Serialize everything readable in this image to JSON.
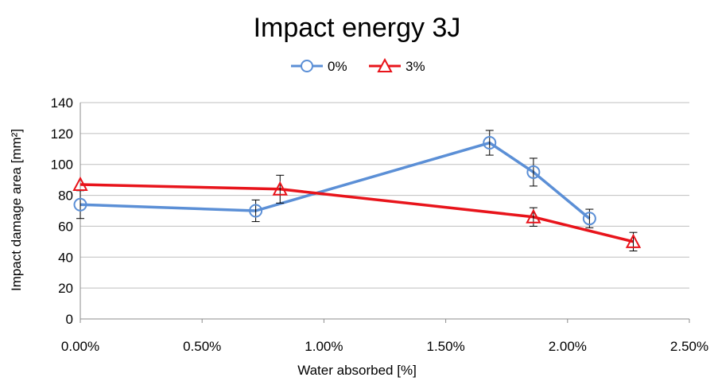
{
  "chart_data": {
    "type": "line",
    "title": "Impact energy 3J",
    "xlabel": "Water absorbed [%]",
    "ylabel": "Impact damage area [mm²]",
    "xlim": [
      0,
      2.5
    ],
    "ylim": [
      0,
      140
    ],
    "x_ticks": [
      "0.00%",
      "0.50%",
      "1.00%",
      "1.50%",
      "2.00%",
      "2.50%"
    ],
    "y_ticks": [
      "0",
      "20",
      "40",
      "60",
      "80",
      "100",
      "120",
      "140"
    ],
    "grid": "horizontal",
    "legend_position": "top",
    "series": [
      {
        "name": "0%",
        "color": "#5b8fd6",
        "marker": "circle",
        "x": [
          0.0,
          0.72,
          1.68,
          1.86,
          2.09
        ],
        "y": [
          74,
          70,
          114,
          95,
          65
        ],
        "err": [
          9,
          7,
          8,
          9,
          6
        ]
      },
      {
        "name": "3%",
        "color": "#e8141b",
        "marker": "triangle",
        "x": [
          0.0,
          0.82,
          1.86,
          2.27
        ],
        "y": [
          87,
          84,
          66,
          50
        ],
        "err": [
          0,
          9,
          6,
          6
        ]
      }
    ]
  }
}
